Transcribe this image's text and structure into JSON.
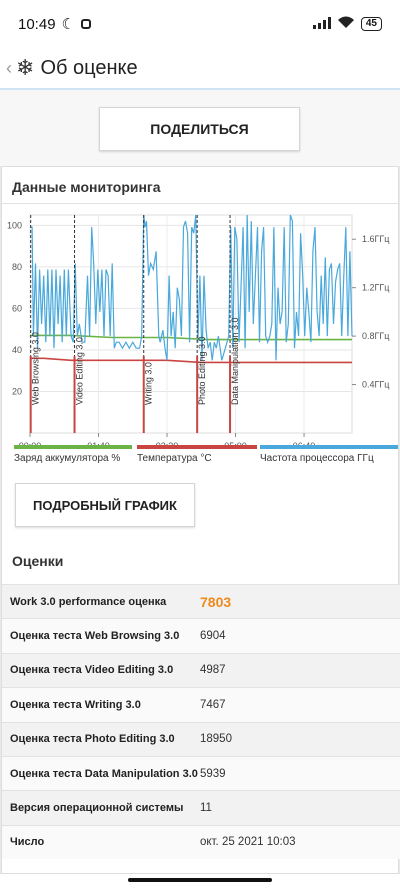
{
  "status": {
    "time": "10:49",
    "battery": "45",
    "moon_icon": "moon-icon",
    "signal_icon": "signal-icon",
    "wifi_icon": "wifi-icon"
  },
  "app": {
    "title": "Об оценке",
    "back_icon": "chevron-left-icon",
    "logo_icon": "snowflake-icon"
  },
  "share_label": "ПОДЕЛИТЬСЯ",
  "monitoring_title": "Данные мониторинга",
  "detail_button_label": "ПОДРОБНЫЙ ГРАФИК",
  "scores_title": "Оценки",
  "legend": [
    {
      "label": "Заряд аккумулятора %",
      "color": "#6ab344"
    },
    {
      "label": "Температура °C",
      "color": "#c94542"
    },
    {
      "label": "Частота процессора ГГц",
      "color": "#49a8dc"
    }
  ],
  "scores": [
    {
      "label": "Work 3.0 performance оценка",
      "value": "7803",
      "accent": true
    },
    {
      "label": "Оценка теста Web Browsing 3.0",
      "value": "6904"
    },
    {
      "label": "Оценка теста Video Editing 3.0",
      "value": "4987"
    },
    {
      "label": "Оценка теста Writing 3.0",
      "value": "7467"
    },
    {
      "label": "Оценка теста Photo Editing 3.0",
      "value": "18950"
    },
    {
      "label": "Оценка теста Data Manipulation 3.0",
      "value": "5939"
    },
    {
      "label": "Версия операционной системы",
      "value": "11"
    },
    {
      "label": "Число",
      "value": "окт. 25 2021 10:03"
    }
  ],
  "chart_data": {
    "type": "line",
    "xlabel": "",
    "ylabel": "",
    "x_ticks": [
      "00:00",
      "01:40",
      "03:20",
      "05:00",
      "06:40"
    ],
    "x_tick_minutes": [
      0,
      100,
      200,
      300,
      400
    ],
    "x_range_minutes": [
      0,
      470
    ],
    "y_left_ticks": [
      20,
      40,
      60,
      80,
      100
    ],
    "y_left_range": [
      0,
      105
    ],
    "y_right_ticks": [
      "0.4ГГц",
      "0.8ГГц",
      "1.2ГГц",
      "1.6ГГц"
    ],
    "y_right_values": [
      0.4,
      0.8,
      1.2,
      1.6
    ],
    "y_right_range": [
      0,
      1.8
    ],
    "grid": true,
    "markers": [
      {
        "label": "Web Browsing 3.0",
        "minute": 1
      },
      {
        "label": "Video Editing 3.0",
        "minute": 65
      },
      {
        "label": "Writing 3.0",
        "minute": 166
      },
      {
        "label": "Photo Editing 3.0",
        "minute": 244
      },
      {
        "label": "Data Manipulation 3.0",
        "minute": 292
      }
    ],
    "series": [
      {
        "name": "Заряд аккумулятора %",
        "axis": "left",
        "color": "#6ab344",
        "points": [
          [
            0,
            47
          ],
          [
            60,
            47
          ],
          [
            120,
            46
          ],
          [
            200,
            46
          ],
          [
            260,
            45
          ],
          [
            300,
            45
          ],
          [
            330,
            45
          ],
          [
            470,
            45
          ]
        ]
      },
      {
        "name": "Температура °C",
        "axis": "left",
        "color": "#c94542",
        "points": [
          [
            0,
            36
          ],
          [
            20,
            36
          ],
          [
            60,
            35
          ],
          [
            100,
            35
          ],
          [
            140,
            35
          ],
          [
            170,
            35
          ],
          [
            200,
            35
          ],
          [
            250,
            34
          ],
          [
            300,
            34
          ],
          [
            380,
            34
          ],
          [
            470,
            34
          ]
        ]
      },
      {
        "name": "Частота процессора ГГц",
        "axis": "right",
        "color": "#49a8dc",
        "points": [
          [
            0,
            1.7
          ],
          [
            3,
            1.7
          ],
          [
            5,
            0.8
          ],
          [
            8,
            1.4
          ],
          [
            11,
            0.7
          ],
          [
            14,
            1.35
          ],
          [
            17,
            0.9
          ],
          [
            20,
            1.3
          ],
          [
            23,
            0.75
          ],
          [
            26,
            1.35
          ],
          [
            29,
            0.8
          ],
          [
            32,
            1.35
          ],
          [
            35,
            0.7
          ],
          [
            38,
            1.35
          ],
          [
            41,
            0.9
          ],
          [
            44,
            1.3
          ],
          [
            47,
            0.75
          ],
          [
            50,
            1.35
          ],
          [
            53,
            0.8
          ],
          [
            56,
            1.35
          ],
          [
            60,
            0.8
          ],
          [
            63,
            0.75
          ],
          [
            66,
            1.4
          ],
          [
            69,
            0.8
          ],
          [
            72,
            0.9
          ],
          [
            76,
            0.75
          ],
          [
            80,
            0.75
          ],
          [
            84,
            1.3
          ],
          [
            87,
            0.8
          ],
          [
            90,
            1.7
          ],
          [
            93,
            1.4
          ],
          [
            96,
            0.9
          ],
          [
            99,
            1.35
          ],
          [
            102,
            1.0
          ],
          [
            105,
            1.35
          ],
          [
            108,
            0.8
          ],
          [
            111,
            1.35
          ],
          [
            114,
            1.3
          ],
          [
            117,
            0.8
          ],
          [
            120,
            1.4
          ],
          [
            123,
            0.7
          ],
          [
            126,
            0.75
          ],
          [
            130,
            0.75
          ],
          [
            135,
            0.7
          ],
          [
            140,
            0.75
          ],
          [
            145,
            0.7
          ],
          [
            150,
            0.75
          ],
          [
            155,
            0.7
          ],
          [
            160,
            0.7
          ],
          [
            163,
            0.8
          ],
          [
            166,
            1.8
          ],
          [
            168,
            1.7
          ],
          [
            170,
            1.75
          ],
          [
            173,
            1.3
          ],
          [
            176,
            1.4
          ],
          [
            180,
            1.35
          ],
          [
            184,
            1.5
          ],
          [
            188,
            0.8
          ],
          [
            190,
            0.75
          ],
          [
            194,
            0.85
          ],
          [
            197,
            0.7
          ],
          [
            200,
            0.6
          ],
          [
            203,
            1.3
          ],
          [
            206,
            0.8
          ],
          [
            209,
            1.0
          ],
          [
            212,
            0.7
          ],
          [
            215,
            1.2
          ],
          [
            218,
            1.1
          ],
          [
            221,
            0.8
          ],
          [
            224,
            1.7
          ],
          [
            227,
            1.75
          ],
          [
            230,
            1.65
          ],
          [
            233,
            0.75
          ],
          [
            236,
            1.7
          ],
          [
            239,
            1.65
          ],
          [
            242,
            1.8
          ],
          [
            245,
            0.75
          ],
          [
            248,
            1.3
          ],
          [
            251,
            0.6
          ],
          [
            254,
            1.3
          ],
          [
            257,
            0.85
          ],
          [
            260,
            0.7
          ],
          [
            263,
            0.75
          ],
          [
            266,
            0.6
          ],
          [
            269,
            0.75
          ],
          [
            272,
            0.7
          ],
          [
            275,
            0.8
          ],
          [
            280,
            0.6
          ],
          [
            285,
            0.7
          ],
          [
            290,
            0.8
          ],
          [
            293,
            1.7
          ],
          [
            296,
            0.7
          ],
          [
            299,
            1.7
          ],
          [
            302,
            1.6
          ],
          [
            305,
            0.75
          ],
          [
            308,
            1.2
          ],
          [
            311,
            1.7
          ],
          [
            314,
            0.7
          ],
          [
            317,
            1.8
          ],
          [
            320,
            1.0
          ],
          [
            323,
            1.75
          ],
          [
            326,
            0.9
          ],
          [
            329,
            1.3
          ],
          [
            332,
            1.7
          ],
          [
            335,
            0.75
          ],
          [
            338,
            1.5
          ],
          [
            341,
            1.7
          ],
          [
            344,
            0.8
          ],
          [
            347,
            0.75
          ],
          [
            350,
            0.8
          ],
          [
            353,
            0.9
          ],
          [
            356,
            1.7
          ],
          [
            359,
            0.6
          ],
          [
            362,
            1.2
          ],
          [
            365,
            0.9
          ],
          [
            368,
            1.0
          ],
          [
            371,
            1.7
          ],
          [
            374,
            0.75
          ],
          [
            377,
            0.9
          ],
          [
            380,
            1.8
          ],
          [
            383,
            1.75
          ],
          [
            386,
            0.7
          ],
          [
            389,
            1.0
          ],
          [
            392,
            0.8
          ],
          [
            395,
            1.65
          ],
          [
            398,
            1.3
          ],
          [
            401,
            0.8
          ],
          [
            404,
            1.2
          ],
          [
            407,
            1.0
          ],
          [
            410,
            0.75
          ],
          [
            413,
            1.5
          ],
          [
            416,
            1.7
          ],
          [
            419,
            1.0
          ],
          [
            422,
            0.8
          ],
          [
            425,
            1.3
          ],
          [
            428,
            0.9
          ],
          [
            431,
            1.45
          ],
          [
            434,
            0.8
          ],
          [
            437,
            1.35
          ],
          [
            440,
            1.4
          ],
          [
            443,
            0.9
          ],
          [
            446,
            1.25
          ],
          [
            449,
            1.35
          ],
          [
            452,
            1.4
          ],
          [
            455,
            0.8
          ],
          [
            458,
            1.3
          ],
          [
            461,
            1.7
          ],
          [
            464,
            0.8
          ],
          [
            467,
            1.5
          ],
          [
            470,
            0.8
          ]
        ]
      }
    ]
  }
}
